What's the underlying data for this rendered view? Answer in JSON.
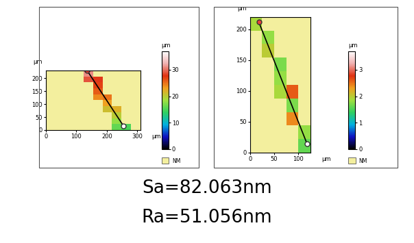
{
  "chart_data": [
    {
      "type": "heatmap",
      "x_label": "µm",
      "y_label": "µm",
      "xlim": [
        0,
        310
      ],
      "ylim": [
        0,
        230
      ],
      "xticks": [
        0,
        100,
        200,
        300
      ],
      "yticks": [
        0,
        50,
        100,
        150,
        200
      ],
      "x_edges": [
        0,
        31,
        62,
        93,
        124,
        155,
        186,
        217,
        248,
        279,
        310
      ],
      "y_edges": [
        0,
        23,
        46,
        69,
        92,
        115,
        138,
        161,
        184,
        207,
        230
      ],
      "cells": [
        [
          null,
          null,
          null,
          null,
          null,
          null,
          null,
          16,
          15,
          null
        ],
        [
          null,
          null,
          null,
          null,
          null,
          null,
          null,
          18,
          null,
          null
        ],
        [
          null,
          null,
          null,
          null,
          null,
          null,
          null,
          20,
          null,
          null
        ],
        [
          null,
          null,
          null,
          null,
          null,
          null,
          21,
          22,
          null,
          null
        ],
        [
          null,
          null,
          null,
          null,
          null,
          null,
          23,
          null,
          null,
          null
        ],
        [
          null,
          null,
          null,
          null,
          null,
          24,
          25,
          null,
          null,
          null
        ],
        [
          null,
          null,
          null,
          null,
          null,
          26,
          null,
          null,
          null,
          null
        ],
        [
          null,
          null,
          null,
          null,
          null,
          27,
          null,
          null,
          null,
          null
        ],
        [
          null,
          null,
          null,
          null,
          29,
          28,
          null,
          null,
          null,
          null
        ],
        [
          null,
          null,
          null,
          null,
          31,
          null,
          null,
          null,
          null,
          null
        ]
      ],
      "colorbar": {
        "range": [
          0,
          37
        ],
        "ticks": [
          0,
          10,
          20,
          30
        ],
        "label": "µm"
      },
      "missing_label": "NM",
      "line_x": [
        255,
        135
      ],
      "line_y": [
        15,
        230
      ]
    },
    {
      "type": "heatmap",
      "x_label": "µm",
      "y_label": "µm",
      "xlim": [
        0,
        125
      ],
      "ylim": [
        0,
        220
      ],
      "xticks": [
        0,
        50,
        100
      ],
      "yticks": [
        0,
        50,
        100,
        150,
        200
      ],
      "x_edges": [
        0,
        25,
        50,
        75,
        100,
        125
      ],
      "y_edges": [
        0,
        22,
        44,
        66,
        88,
        110,
        132,
        154,
        176,
        198,
        220
      ],
      "cells": [
        [
          null,
          null,
          null,
          null,
          1.6
        ],
        [
          null,
          null,
          null,
          null,
          1.8
        ],
        [
          null,
          null,
          null,
          2.4,
          null
        ],
        [
          null,
          null,
          null,
          1.7,
          null
        ],
        [
          null,
          null,
          1.9,
          2.6,
          null
        ],
        [
          null,
          null,
          1.8,
          null,
          null
        ],
        [
          null,
          null,
          1.7,
          null,
          null
        ],
        [
          null,
          2.0,
          null,
          null,
          null
        ],
        [
          null,
          1.8,
          null,
          null,
          null
        ],
        [
          1.9,
          null,
          null,
          null,
          null
        ]
      ],
      "colorbar": {
        "range": [
          0,
          3.7
        ],
        "ticks": [
          0,
          1,
          2,
          3
        ],
        "label": "µm"
      },
      "missing_label": "NM",
      "line_x": [
        118,
        18
      ],
      "line_y": [
        14,
        212
      ]
    }
  ],
  "annotations": [
    "Sa=82.063nm",
    "Ra=51.056nm"
  ]
}
